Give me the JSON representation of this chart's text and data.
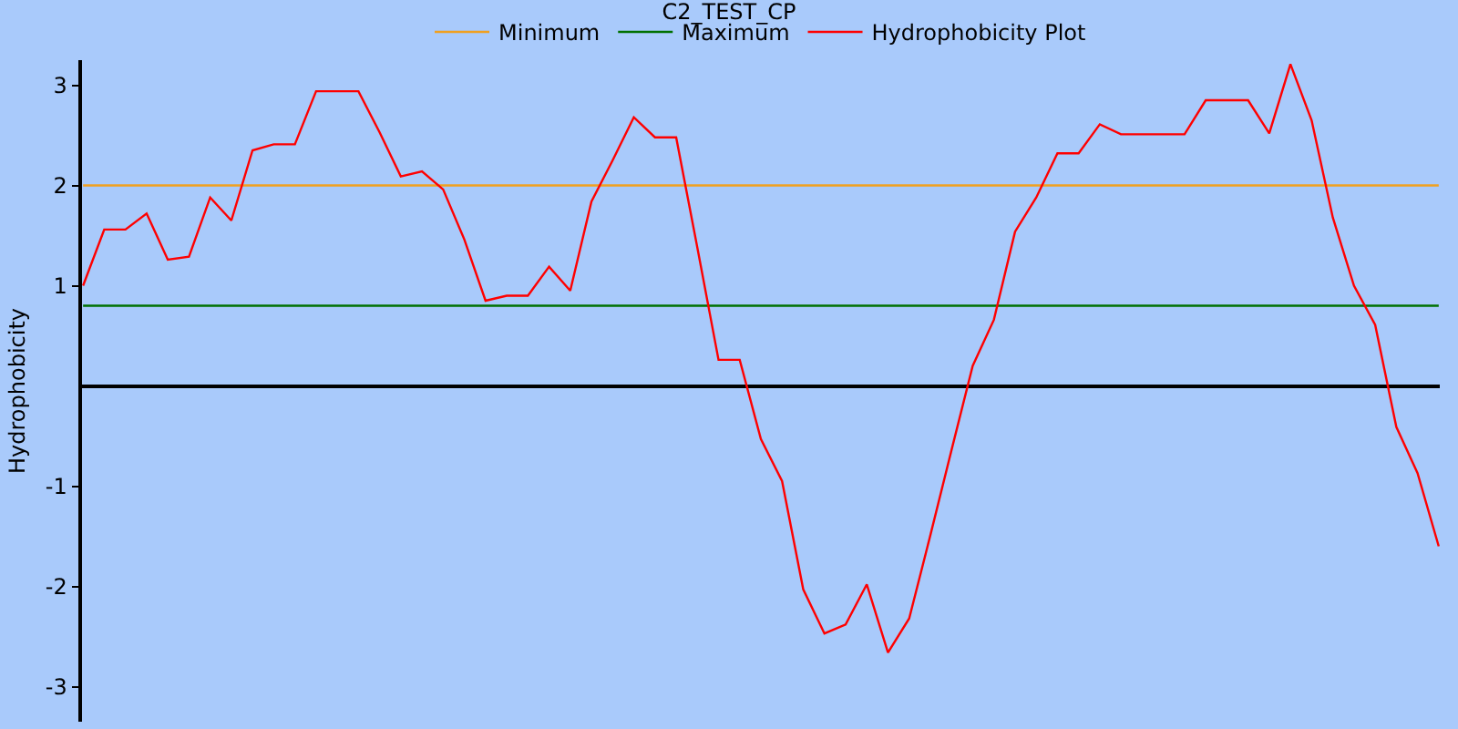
{
  "chart_data": {
    "type": "line",
    "title": "C2_TEST_CP",
    "ylabel": "Hydrophobicity",
    "categories": [
      null,
      null,
      null,
      null,
      null,
      null,
      null,
      null,
      null,
      null,
      null,
      null,
      null,
      null,
      null,
      null,
      null,
      null,
      null,
      null,
      null,
      null,
      null,
      null,
      null,
      null,
      null,
      null,
      null,
      null,
      null,
      null,
      null,
      null,
      null,
      null,
      null,
      null,
      null,
      null,
      null,
      null,
      null,
      null,
      null,
      null,
      null,
      null,
      null,
      null,
      null,
      null,
      null,
      null,
      null,
      null,
      null,
      null,
      null,
      null,
      null,
      null,
      null,
      null,
      null
    ],
    "series": [
      {
        "name": "Minimum",
        "color": "#f0a020",
        "values": [
          2,
          2,
          2,
          2,
          2,
          2,
          2,
          2,
          2,
          2,
          2,
          2,
          2,
          2,
          2,
          2,
          2,
          2,
          2,
          2,
          2,
          2,
          2,
          2,
          2,
          2,
          2,
          2,
          2,
          2,
          2,
          2,
          2,
          2,
          2,
          2,
          2,
          2,
          2,
          2,
          2,
          2,
          2,
          2,
          2,
          2,
          2,
          2,
          2,
          2,
          2,
          2,
          2,
          2,
          2,
          2,
          2,
          2,
          2,
          2,
          2,
          2,
          2,
          2,
          2
        ]
      },
      {
        "name": "Maximum",
        "color": "#007000",
        "values": [
          0.8,
          0.8,
          0.8,
          0.8,
          0.8,
          0.8,
          0.8,
          0.8,
          0.8,
          0.8,
          0.8,
          0.8,
          0.8,
          0.8,
          0.8,
          0.8,
          0.8,
          0.8,
          0.8,
          0.8,
          0.8,
          0.8,
          0.8,
          0.8,
          0.8,
          0.8,
          0.8,
          0.8,
          0.8,
          0.8,
          0.8,
          0.8,
          0.8,
          0.8,
          0.8,
          0.8,
          0.8,
          0.8,
          0.8,
          0.8,
          0.8,
          0.8,
          0.8,
          0.8,
          0.8,
          0.8,
          0.8,
          0.8,
          0.8,
          0.8,
          0.8,
          0.8,
          0.8,
          0.8,
          0.8,
          0.8,
          0.8,
          0.8,
          0.8,
          0.8,
          0.8,
          0.8,
          0.8,
          0.8,
          0.8
        ]
      },
      {
        "name": "Hydrophobicity Plot",
        "color": "#ff0000",
        "values": [
          1.0,
          1.56,
          1.56,
          1.72,
          1.26,
          1.29,
          1.88,
          1.65,
          2.35,
          2.41,
          2.41,
          2.94,
          2.94,
          2.94,
          2.53,
          2.09,
          2.14,
          1.96,
          1.46,
          0.85,
          0.9,
          0.9,
          1.19,
          0.95,
          1.84,
          2.25,
          2.68,
          2.48,
          2.48,
          1.38,
          0.26,
          0.26,
          -0.53,
          -0.95,
          -2.03,
          -2.47,
          -2.38,
          -1.98,
          -2.66,
          -2.32,
          -1.49,
          -0.64,
          0.2,
          0.66,
          1.54,
          1.88,
          2.32,
          2.32,
          2.61,
          2.51,
          2.51,
          2.51,
          2.51,
          2.85,
          2.85,
          2.85,
          2.52,
          3.21,
          2.65,
          1.68,
          1.0,
          0.61,
          -0.41,
          -0.87,
          -1.6
        ]
      }
    ],
    "ylim": [
      -3.35,
      3.25
    ],
    "yticks": [
      -3,
      -2,
      -1,
      1,
      2,
      3
    ],
    "grid": false,
    "legend": "top",
    "marker": "none",
    "line_style": "solid"
  }
}
